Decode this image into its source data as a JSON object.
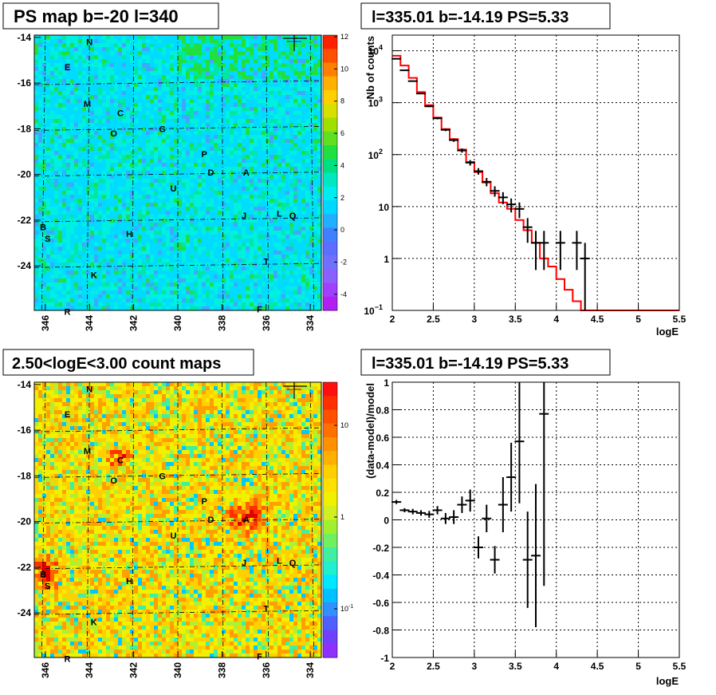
{
  "panels": {
    "tl_title": "PS map b=-20 l=340",
    "tr_title": "l=335.01 b=-14.19 PS=5.33",
    "bl_title": "2.50<logE<3.00 count maps",
    "br_title": "l=335.01 b=-14.19 PS=5.33"
  },
  "colors": {
    "counts": "#000000",
    "model": "#ff0000"
  },
  "maps": {
    "l_ticks": [
      "346",
      "344",
      "342",
      "340",
      "338",
      "336",
      "334"
    ],
    "b_ticks": [
      "-14",
      "-16",
      "-18",
      "-20",
      "-22",
      "-24"
    ],
    "sources": [
      {
        "name": "N",
        "l": 344.0,
        "b": -14.2
      },
      {
        "name": "E",
        "l": 345.0,
        "b": -15.3
      },
      {
        "name": "M",
        "l": 344.1,
        "b": -16.9
      },
      {
        "name": "C",
        "l": 342.6,
        "b": -17.3
      },
      {
        "name": "O",
        "l": 342.9,
        "b": -18.2
      },
      {
        "name": "G",
        "l": 340.7,
        "b": -18.0
      },
      {
        "name": "P",
        "l": 338.8,
        "b": -19.1
      },
      {
        "name": "D",
        "l": 338.5,
        "b": -19.9
      },
      {
        "name": "A",
        "l": 336.9,
        "b": -19.9
      },
      {
        "name": "U",
        "l": 340.2,
        "b": -20.6
      },
      {
        "name": "J",
        "l": 337.0,
        "b": -21.8
      },
      {
        "name": "L",
        "l": 335.4,
        "b": -21.7
      },
      {
        "name": "Q",
        "l": 334.8,
        "b": -21.8
      },
      {
        "name": "B",
        "l": 346.1,
        "b": -22.3
      },
      {
        "name": "S",
        "l": 345.9,
        "b": -22.8
      },
      {
        "name": "H",
        "l": 342.2,
        "b": -22.6
      },
      {
        "name": "T",
        "l": 336.0,
        "b": -23.8
      },
      {
        "name": "K",
        "l": 343.8,
        "b": -24.4
      },
      {
        "name": "F",
        "l": 336.3,
        "b": -25.9
      },
      {
        "name": "R",
        "l": 345.0,
        "b": -26.0
      }
    ],
    "ps_colorbar_ticks": [
      "12",
      "10",
      "8",
      "6",
      "4",
      "2",
      "0",
      "-2",
      "-4"
    ],
    "count_colorbar_ticks": [
      "10",
      "1",
      "10"
    ],
    "count_colorbar_exps": [
      "",
      "",
      "-1"
    ]
  },
  "chart_data": [
    {
      "type": "line",
      "title": "l=335.01 b=-14.19 PS=5.33",
      "xlabel": "logE",
      "ylabel": "Nb of counts",
      "xlim": [
        2,
        5.5
      ],
      "ylim": [
        0.1,
        20000
      ],
      "yscale": "log",
      "grid": true,
      "x_ticks": [
        "2",
        "2.5",
        "3",
        "3.5",
        "4",
        "4.5",
        "5",
        "5.5"
      ],
      "y_ticks": [
        {
          "v": 10000,
          "m": "10",
          "e": "4"
        },
        {
          "v": 1000,
          "m": "10",
          "e": "3"
        },
        {
          "v": 100,
          "m": "10",
          "e": "2"
        },
        {
          "v": 10,
          "m": "10",
          "e": ""
        },
        {
          "v": 1,
          "m": "1",
          "e": ""
        },
        {
          "v": 0.1,
          "m": "10",
          "e": "−1"
        }
      ],
      "series": [
        {
          "values_kind": "data points with error bars",
          "x": [
            2.05,
            2.15,
            2.25,
            2.35,
            2.45,
            2.55,
            2.65,
            2.75,
            2.85,
            2.95,
            3.05,
            3.15,
            3.25,
            3.35,
            3.45,
            3.55,
            3.65,
            3.75,
            3.85,
            3.95,
            4.05,
            4.15,
            4.25,
            4.35
          ],
          "y": [
            7000,
            4200,
            2600,
            1500,
            850,
            500,
            300,
            190,
            120,
            70,
            48,
            30,
            20,
            15,
            11,
            9,
            4,
            2,
            2,
            0,
            2,
            0,
            2,
            1
          ],
          "err": [
            84,
            65,
            51,
            39,
            29,
            22,
            17,
            14,
            11,
            8.4,
            6.9,
            5.5,
            4.5,
            3.9,
            3.3,
            3,
            2,
            1.4,
            1.4,
            0,
            1.4,
            0,
            1.4,
            1
          ]
        },
        {
          "values_kind": "model histogram",
          "edges": [
            2.0,
            2.1,
            2.2,
            2.3,
            2.4,
            2.5,
            2.6,
            2.7,
            2.8,
            2.9,
            3.0,
            3.1,
            3.2,
            3.3,
            3.4,
            3.5,
            3.6,
            3.7,
            3.8,
            3.9,
            4.0,
            4.1,
            4.2,
            4.3,
            4.4,
            5.5
          ],
          "values": [
            8000,
            5200,
            3000,
            1600,
            900,
            520,
            310,
            200,
            125,
            72,
            46,
            29,
            18,
            12,
            9,
            5.5,
            3.5,
            2,
            1.0,
            0.7,
            0.4,
            0.25,
            0.15,
            0.1,
            0.1
          ]
        }
      ]
    },
    {
      "type": "scatter",
      "title": "l=335.01 b=-14.19 PS=5.33",
      "xlabel": "logE",
      "ylabel": "(data-model)/model",
      "xlim": [
        2,
        5.5
      ],
      "ylim": [
        -1,
        1
      ],
      "grid": true,
      "x_ticks": [
        "2",
        "2.5",
        "3",
        "3.5",
        "4",
        "4.5",
        "5",
        "5.5"
      ],
      "y_ticks": [
        "1",
        "0.8",
        "0.6",
        "0.4",
        "0.2",
        "0",
        "-0.2",
        "-0.4",
        "-0.6",
        "-0.8",
        "-1"
      ],
      "series": [
        {
          "values_kind": "residuals with error bars",
          "x": [
            2.05,
            2.15,
            2.25,
            2.35,
            2.45,
            2.55,
            2.65,
            2.75,
            2.85,
            2.95,
            3.05,
            3.15,
            3.25,
            3.35,
            3.45,
            3.55,
            3.65,
            3.75,
            3.85
          ],
          "y": [
            0.13,
            0.07,
            0.06,
            0.05,
            0.04,
            0.07,
            0.01,
            0.02,
            0.11,
            0.14,
            -0.2,
            0.01,
            -0.29,
            0.11,
            0.31,
            0.57,
            -0.29,
            -0.26,
            0.77
          ],
          "err": [
            0.015,
            0.015,
            0.02,
            0.02,
            0.025,
            0.03,
            0.04,
            0.05,
            0.06,
            0.08,
            0.08,
            0.1,
            0.1,
            0.2,
            0.25,
            0.45,
            0.35,
            0.52,
            1.25
          ]
        }
      ]
    }
  ]
}
